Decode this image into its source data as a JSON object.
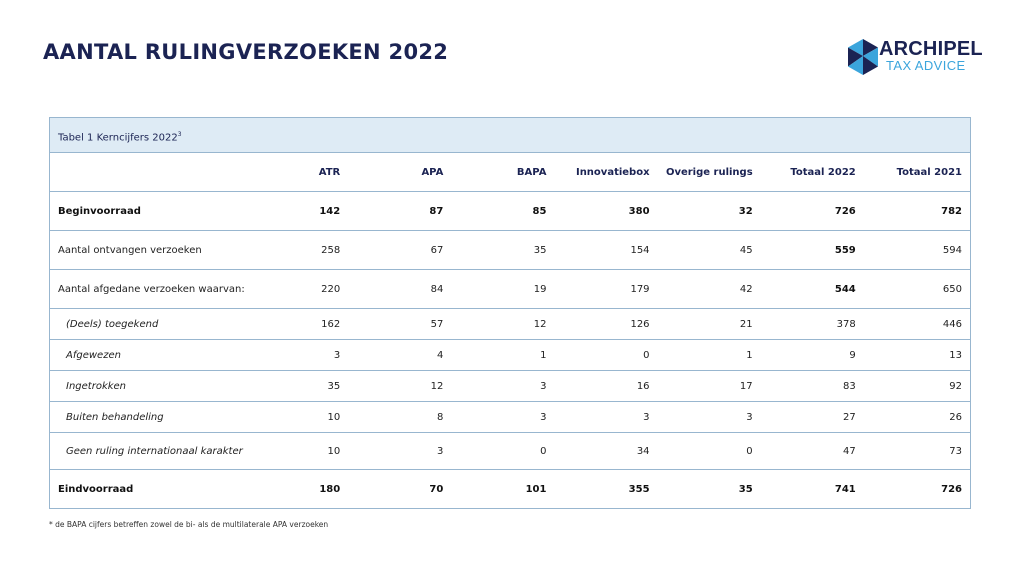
{
  "header": {
    "title": "AANTAL RULINGVERZOEKEN 2022",
    "logo": {
      "name": "ARCHIPEL",
      "subtitle": "TAX ADVICE",
      "icon": "hexagon-triangles-icon",
      "colors": {
        "navy": "#1b2353",
        "light_blue": "#3ba5dc"
      }
    }
  },
  "table": {
    "caption": "Tabel 1 Kerncijfers 2022",
    "caption_sup": "3",
    "columns": [
      "ATR",
      "APA",
      "BAPA",
      "Innovatiebox",
      "Overige rulings",
      "Totaal 2022",
      "Totaal 2021"
    ],
    "rows": [
      {
        "label": "Beginvoorraad",
        "values": [
          "142",
          "87",
          "85",
          "380",
          "32",
          "726",
          "782"
        ]
      },
      {
        "label": "Aantal ontvangen verzoeken",
        "values": [
          "258",
          "67",
          "35",
          "154",
          "45",
          "559",
          "594"
        ]
      },
      {
        "label": "Aantal afgedane verzoeken waarvan:",
        "values": [
          "220",
          "84",
          "19",
          "179",
          "42",
          "544",
          "650"
        ]
      },
      {
        "label": "(Deels) toegekend",
        "values": [
          "162",
          "57",
          "12",
          "126",
          "21",
          "378",
          "446"
        ]
      },
      {
        "label": "Afgewezen",
        "values": [
          "3",
          "4",
          "1",
          "0",
          "1",
          "9",
          "13"
        ]
      },
      {
        "label": "Ingetrokken",
        "values": [
          "35",
          "12",
          "3",
          "16",
          "17",
          "83",
          "92"
        ]
      },
      {
        "label": "Buiten behandeling",
        "values": [
          "10",
          "8",
          "3",
          "3",
          "3",
          "27",
          "26"
        ]
      },
      {
        "label": "Geen ruling internationaal karakter",
        "values": [
          "10",
          "3",
          "0",
          "34",
          "0",
          "47",
          "73"
        ]
      },
      {
        "label": "Eindvoorraad",
        "values": [
          "180",
          "70",
          "101",
          "355",
          "35",
          "741",
          "726"
        ]
      }
    ],
    "colors": {
      "border": "#98b6cf",
      "caption_bg": "#deebf5",
      "header_text": "#1b2353"
    }
  },
  "footnote": "* de BAPA cijfers betreffen zowel de  bi- als de multilaterale APA verzoeken"
}
